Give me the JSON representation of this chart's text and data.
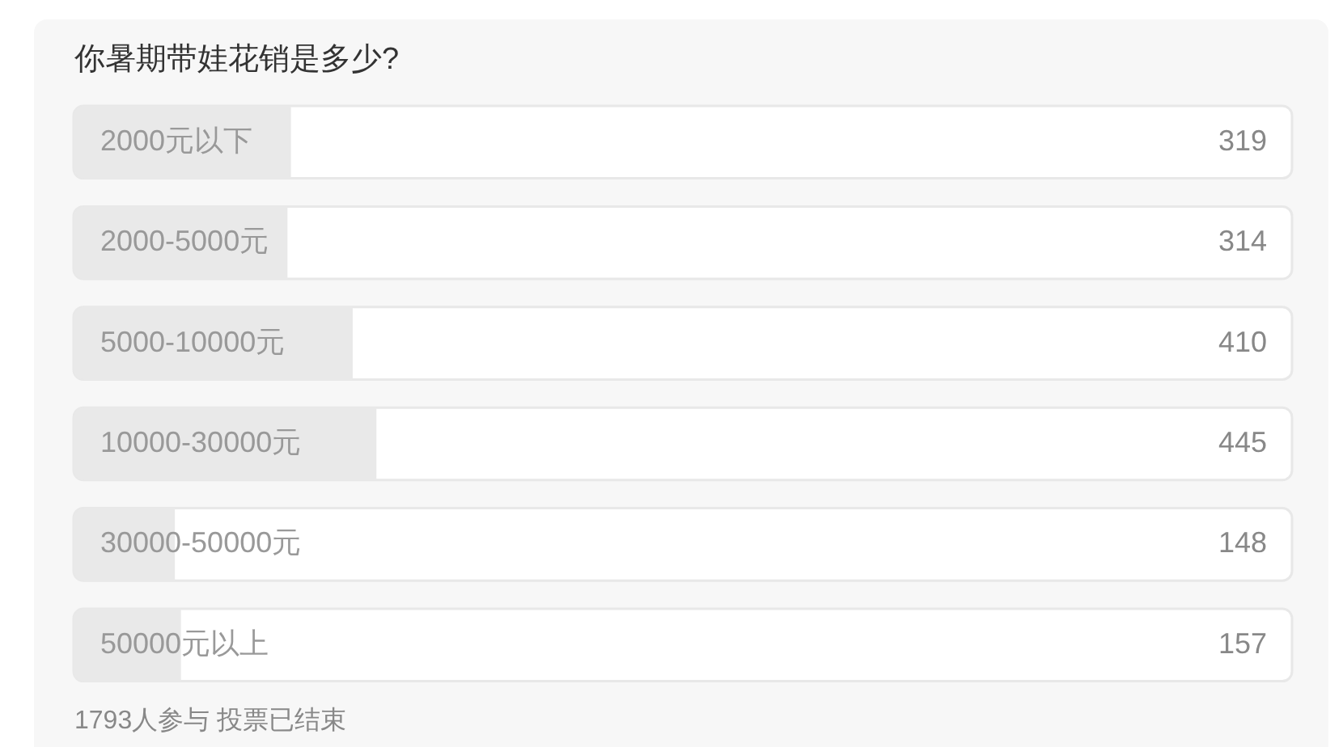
{
  "chart_data": {
    "type": "bar",
    "orientation": "horizontal",
    "title": "你暑期带娃花销是多少?",
    "categories": [
      "2000元以下",
      "2000-5000元",
      "5000-10000元",
      "10000-30000元",
      "30000-50000元",
      "50000元以上"
    ],
    "values": [
      319,
      314,
      410,
      445,
      148,
      157
    ],
    "color": "#e9e9e9",
    "xlim": [
      0,
      1793
    ],
    "data_labels": true,
    "tick_labels": "y",
    "annotations": [
      "1793人参与 投票已结束"
    ]
  }
}
